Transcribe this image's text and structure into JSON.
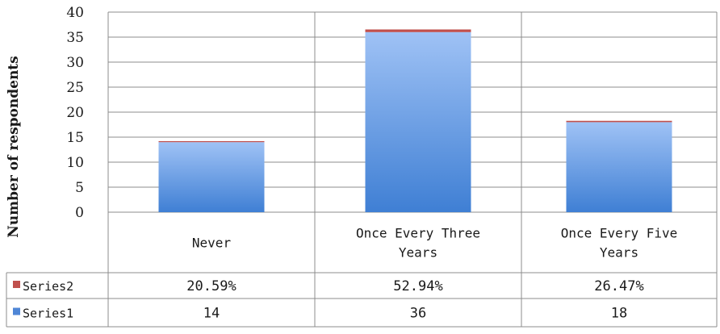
{
  "chart_data": {
    "type": "bar",
    "stacked": true,
    "ylabel": "Number of respondents",
    "xlabel": "",
    "ylim": [
      0,
      40
    ],
    "yticks": [
      0,
      5,
      10,
      15,
      20,
      25,
      30,
      35,
      40
    ],
    "grid": true,
    "legend": "data-table",
    "categories": [
      [
        "Never"
      ],
      [
        "Once Every Three",
        "Years"
      ],
      [
        "Once Every Five",
        "Years"
      ]
    ],
    "series": [
      {
        "name": "Series2",
        "values": [
          0.2059,
          0.5294,
          0.2647
        ],
        "labels": [
          "20.59%",
          "52.94%",
          "26.47%"
        ],
        "color": "#c0504d"
      },
      {
        "name": "Series1",
        "values": [
          14,
          36,
          18
        ],
        "labels": [
          "14",
          "36",
          "18"
        ],
        "color": "#5b8ed6"
      }
    ]
  }
}
